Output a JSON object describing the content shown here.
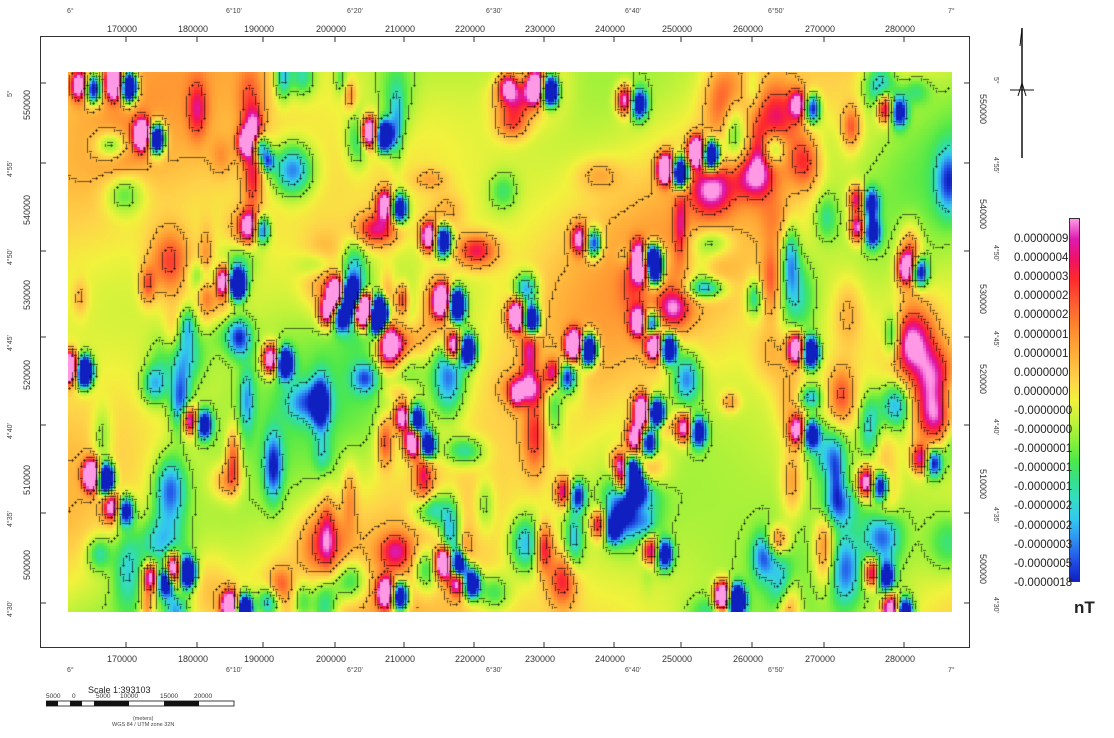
{
  "map": {
    "x_ticks_top": [
      "170000",
      "180000",
      "190000",
      "200000",
      "210000",
      "220000",
      "230000",
      "240000",
      "250000",
      "260000",
      "270000",
      "280000"
    ],
    "x_ticks_bottom": [
      "170000",
      "180000",
      "190000",
      "200000",
      "210000",
      "220000",
      "230000",
      "240000",
      "250000",
      "260000",
      "270000",
      "280000"
    ],
    "lon_top": [
      "6°",
      "6°10'",
      "6°20'",
      "6°30'",
      "6°40'",
      "6°50'",
      "7°"
    ],
    "lon_bottom": [
      "6°",
      "6°10'",
      "6°20'",
      "6°30'",
      "6°40'",
      "6°50'",
      "7°"
    ],
    "y_ticks_left": [
      "550000",
      "540000",
      "530000",
      "520000",
      "510000",
      "500000"
    ],
    "lat_left": [
      "5°",
      "4°55'",
      "4°50'",
      "4°45'",
      "4°40'",
      "4°35'",
      "4°30'"
    ],
    "lat_right": [
      "5°",
      "4°55'",
      "4°50'",
      "4°45'",
      "4°40'",
      "4°35'",
      "4°30'"
    ],
    "y_ticks_right": [
      "550000",
      "540000",
      "530000",
      "520000",
      "510000",
      "500000"
    ]
  },
  "legend": {
    "labels": [
      "0.0000009",
      "0.0000004",
      "0.0000003",
      "0.0000002",
      "0.0000002",
      "0.0000001",
      "0.0000001",
      "0.0000000",
      "0.0000000",
      "-0.0000000",
      "-0.0000000",
      "-0.0000001",
      "-0.0000001",
      "-0.0000001",
      "-0.0000002",
      "-0.0000002",
      "-0.0000003",
      "-0.0000005",
      "-0.0000018"
    ],
    "unit": "nT",
    "colors": [
      "#ff99e6",
      "#dd1ab0",
      "#ee1166",
      "#ff2b2b",
      "#ff5533",
      "#ff7a2e",
      "#ff9a33",
      "#ffb63c",
      "#ffd24a",
      "#f2f23c",
      "#c4f23a",
      "#8ef03a",
      "#4ee84a",
      "#35e08a",
      "#35dcc9",
      "#33c6f0",
      "#2f8cf0",
      "#2050e6",
      "#1020c0"
    ]
  },
  "scale": {
    "title": "Scale 1:393103",
    "numbers": [
      "5000",
      "0",
      "5000",
      "10000",
      "15000",
      "20000"
    ],
    "sub_line1": "(meters)",
    "sub_line2": "WGS 84 / UTM zone 32N"
  }
}
